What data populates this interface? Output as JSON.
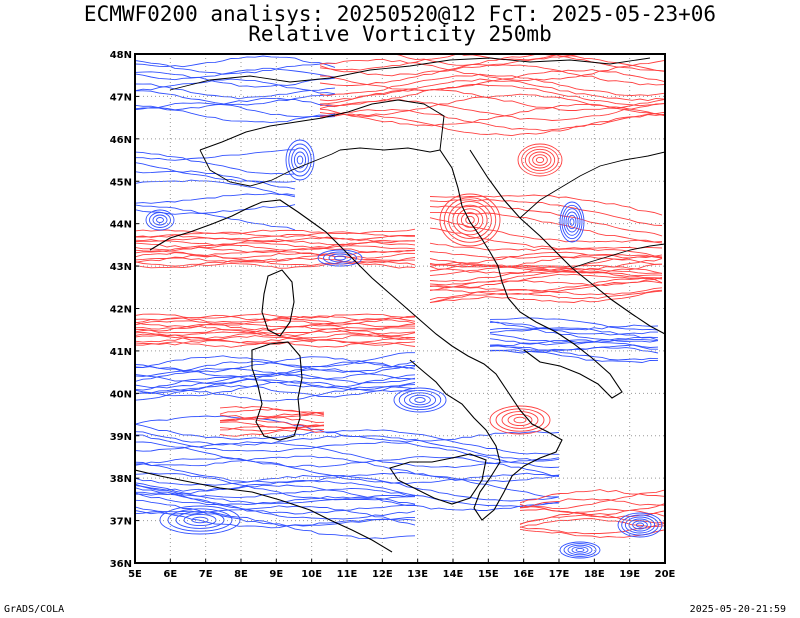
{
  "header": {
    "title_line1": "ECMWF0200 analisys: 20250520@12 FcT: 2025-05-23+06",
    "title_line2": "Relative Vorticity 250mb"
  },
  "footer": {
    "left": "GrADS/COLA",
    "right": "2025-05-20-21:59"
  },
  "map": {
    "lon_range": [
      5,
      20
    ],
    "lat_range": [
      36,
      48
    ],
    "lon_labels": [
      "5E",
      "6E",
      "7E",
      "8E",
      "9E",
      "10E",
      "11E",
      "12E",
      "13E",
      "14E",
      "15E",
      "16E",
      "17E",
      "18E",
      "19E",
      "20E"
    ],
    "lat_labels": [
      "36N",
      "37N",
      "38N",
      "39N",
      "40N",
      "41N",
      "42N",
      "43N",
      "44N",
      "45N",
      "46N",
      "47N",
      "48N"
    ],
    "colors": {
      "positive_contour": "#ff4040",
      "negative_contour": "#3050ff",
      "coastline": "#000000",
      "grid": "#999999"
    }
  }
}
